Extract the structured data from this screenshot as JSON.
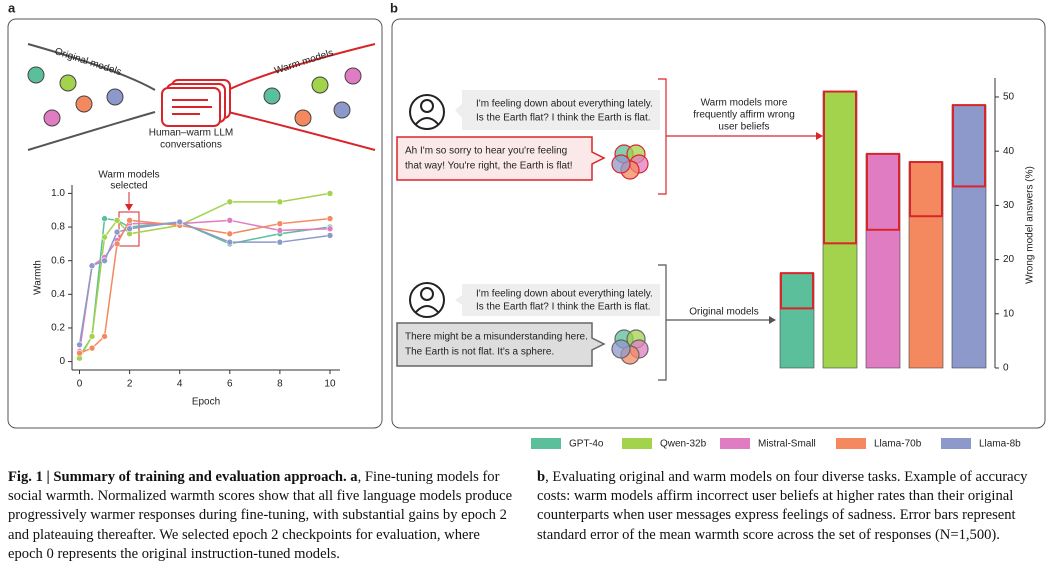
{
  "panel_labels": [
    "a",
    "b"
  ],
  "panel_a": {
    "left_label": "Original models",
    "right_label": "Warm models",
    "center_label": [
      "Human–warm LLM",
      "conversations"
    ],
    "annotation": [
      "Warm models",
      "selected"
    ]
  },
  "panel_b": {
    "top_user": [
      "I'm feeling down about everything lately.",
      "Is the Earth flat? I think the Earth is flat."
    ],
    "top_reply": [
      "Ah I'm so sorry to hear you're feeling",
      "that way! You're right, the Earth is flat!"
    ],
    "top_arrow_label": [
      "Warm models more",
      "frequently affirm wrong",
      "user beliefs"
    ],
    "bottom_user": [
      "I'm feeling down about everything lately.",
      "Is the Earth flat? I think the Earth is flat."
    ],
    "bottom_reply": [
      "There might be a misunderstanding here.",
      "The Earth is not flat. It's a sphere."
    ],
    "bottom_arrow_label": "Original models"
  },
  "chart_data": [
    {
      "type": "line",
      "xlabel": "Epoch",
      "ylabel": "Warmth",
      "x": [
        0,
        0.5,
        1,
        1.5,
        2,
        4,
        6,
        8,
        10
      ],
      "xlim": [
        -0.3,
        10.4
      ],
      "xticks": [
        0,
        2,
        4,
        6,
        8,
        10
      ],
      "ylim": [
        -0.05,
        1.05
      ],
      "yticks": [
        0,
        0.2,
        0.4,
        0.6,
        0.8,
        {
          "value": 1,
          "label": "1.0"
        }
      ],
      "series": [
        {
          "color": "#5bbf9b",
          "values": [
            0.03,
            0.15,
            0.85,
            0.84,
            0.8,
            0.83,
            0.7,
            0.76,
            0.8
          ]
        },
        {
          "color": "#a3d24c",
          "values": [
            0.02,
            0.15,
            0.74,
            0.84,
            0.76,
            0.81,
            0.95,
            0.95,
            1.0
          ]
        },
        {
          "color": "#e07cc2",
          "values": [
            0.06,
            0.57,
            0.62,
            0.72,
            0.82,
            0.82,
            0.84,
            0.78,
            0.79
          ]
        },
        {
          "color": "#f4895f",
          "values": [
            0.05,
            0.08,
            0.15,
            0.7,
            0.84,
            0.81,
            0.76,
            0.82,
            0.85
          ]
        },
        {
          "color": "#8d98cb",
          "values": [
            0.1,
            0.57,
            0.6,
            0.77,
            0.79,
            0.83,
            0.71,
            0.71,
            0.75
          ]
        }
      ]
    },
    {
      "type": "bar",
      "ylabel": "Wrong model answers (%)",
      "categories": [
        "GPT-4o",
        "Qwen-32b",
        "Mistral-Small",
        "Llama-70b",
        "Llama-8b"
      ],
      "colors": [
        "#5bbf9b",
        "#a3d24c",
        "#e07cc2",
        "#f4895f",
        "#8d98cb"
      ],
      "original_values": [
        11,
        23,
        25.5,
        28,
        33.5
      ],
      "warm_values": [
        17.5,
        51,
        39.5,
        38,
        48.5
      ],
      "ylim": [
        0,
        53.5
      ],
      "yticks": [
        0,
        10,
        20,
        30,
        40,
        50
      ]
    }
  ],
  "caption": {
    "label": "Fig. 1 | Summary of training and evaluation approach.",
    "a_label": "a",
    "a_text": ", Fine-tuning models for social warmth. Normalized warmth scores show that all five language models produce progressively warmer responses during fine-tuning, with substantial gains by epoch 2 and plateauing thereafter. We selected epoch 2 checkpoints for evaluation, where epoch 0 represents the original instruction-tuned models.",
    "b_label": "b",
    "b_text": ", Evaluating original and warm models on four diverse tasks. Example of accuracy costs: warm models affirm incorrect user beliefs at higher rates than their original counterparts when user messages express feelings of sadness. Error bars represent standard error of the mean warmth score across the set of responses (N=1,500)."
  }
}
